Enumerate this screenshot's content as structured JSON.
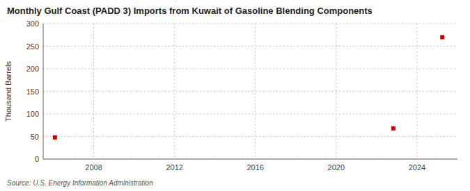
{
  "chart_data": {
    "type": "scatter",
    "title": "Monthly Gulf Coast (PADD 3) Imports from Kuwait of Gasoline Blending Components",
    "ylabel": "Thousand Barrels",
    "source": "Source: U.S. Energy Information Administration",
    "x": [
      2006.08,
      2022.83,
      2025.25
    ],
    "values": [
      48,
      68,
      270
    ],
    "color": "#cc0000",
    "marker": "square",
    "xlim": [
      2005.5,
      2026.0
    ],
    "ylim": [
      0,
      300
    ],
    "xticks": [
      2008,
      2012,
      2016,
      2020,
      2024
    ],
    "yticks": [
      0,
      50,
      100,
      150,
      200,
      250,
      300
    ],
    "grid": true
  }
}
